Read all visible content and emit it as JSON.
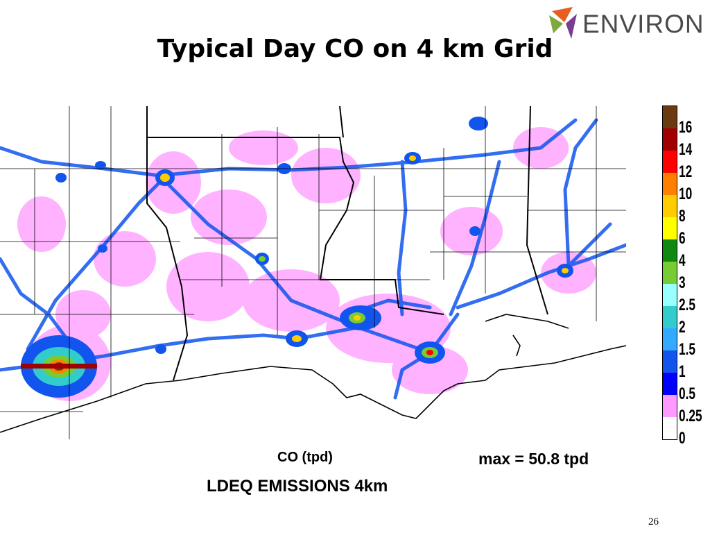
{
  "slide": {
    "title": "Typical Day CO on 4 km Grid",
    "page_number": "26"
  },
  "logo": {
    "text": "ENVIRON",
    "colors": [
      "#e85d23",
      "#7fa93b",
      "#7a3d8f"
    ]
  },
  "map": {
    "unit_label": "CO (tpd)",
    "max_label": "max = 50.8 tpd",
    "source_label": "LDEQ EMISSIONS 4km",
    "background": "#ffffff"
  },
  "legend": {
    "labels": [
      "16",
      "14",
      "12",
      "10",
      "8",
      "6",
      "4",
      "3",
      "2.5",
      "2",
      "1.5",
      "1",
      "0.5",
      "0.25",
      "0"
    ],
    "colors": [
      "#6b3a10",
      "#a00000",
      "#ff0000",
      "#ff7f00",
      "#ffcc00",
      "#ffff00",
      "#118811",
      "#77cc33",
      "#99ffff",
      "#33cccc",
      "#33aaff",
      "#1155ee",
      "#0000ff",
      "#ff99ff",
      "#ffffff"
    ]
  }
}
